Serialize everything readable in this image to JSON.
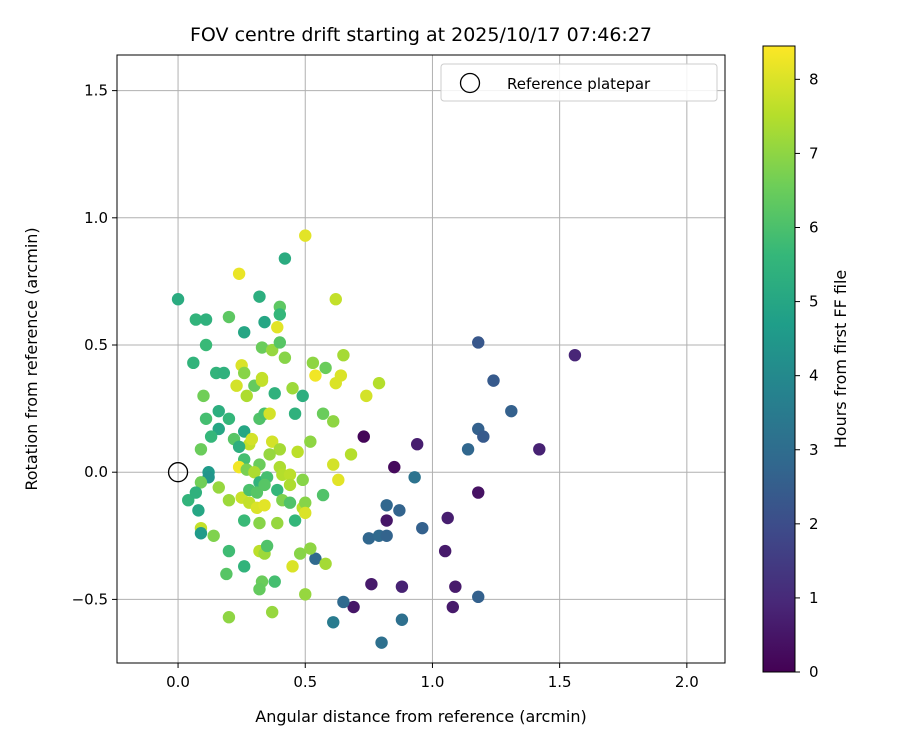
{
  "chart_data": {
    "type": "scatter",
    "title": "FOV centre drift starting at 2025/10/17 07:46:27",
    "xlabel": "Angular distance from reference (arcmin)",
    "ylabel": "Rotation from reference (arcmin)",
    "xlim": [
      -0.24,
      2.15
    ],
    "ylim": [
      -0.75,
      1.64
    ],
    "xticks": [
      0.0,
      0.5,
      1.0,
      1.5,
      2.0
    ],
    "xtick_labels": [
      "0.0",
      "0.5",
      "1.0",
      "1.5",
      "2.0"
    ],
    "yticks": [
      -0.5,
      0.0,
      0.5,
      1.0,
      1.5
    ],
    "ytick_labels": [
      "−0.5",
      "0.0",
      "0.5",
      "1.0",
      "1.5"
    ],
    "grid": true,
    "legend": {
      "label": "Reference platepar",
      "placement": "top-right"
    },
    "reference_point": {
      "x": 0.0,
      "y": 0.0
    },
    "colorbar": {
      "label": "Hours from first FF file",
      "range": [
        0,
        8.45
      ],
      "ticks": [
        0,
        1,
        2,
        3,
        4,
        5,
        6,
        7,
        8
      ],
      "tick_labels": [
        "0",
        "1",
        "2",
        "3",
        "4",
        "5",
        "6",
        "7",
        "8"
      ],
      "colormap": [
        "#440154",
        "#482878",
        "#3e4989",
        "#31688e",
        "#26828e",
        "#1f9e89",
        "#35b779",
        "#6ece58",
        "#b5de2b",
        "#fde725"
      ]
    },
    "points": [
      [
        1.56,
        0.46,
        0.9
      ],
      [
        1.42,
        0.09,
        0.8
      ],
      [
        1.18,
        0.51,
        2.3
      ],
      [
        1.24,
        0.36,
        2.4
      ],
      [
        1.31,
        0.24,
        2.6
      ],
      [
        1.18,
        0.17,
        2.6
      ],
      [
        1.2,
        0.14,
        2.4
      ],
      [
        1.14,
        0.09,
        2.8
      ],
      [
        0.94,
        0.11,
        0.7
      ],
      [
        0.73,
        0.14,
        0.1
      ],
      [
        0.85,
        0.02,
        0.2
      ],
      [
        0.93,
        -0.02,
        3.2
      ],
      [
        1.18,
        -0.08,
        0.4
      ],
      [
        0.82,
        -0.13,
        2.8
      ],
      [
        0.87,
        -0.15,
        2.7
      ],
      [
        0.82,
        -0.19,
        0.5
      ],
      [
        1.06,
        -0.18,
        0.7
      ],
      [
        0.96,
        -0.22,
        2.6
      ],
      [
        0.75,
        -0.26,
        2.8
      ],
      [
        0.79,
        -0.25,
        2.9
      ],
      [
        0.82,
        -0.25,
        2.7
      ],
      [
        1.05,
        -0.31,
        0.6
      ],
      [
        0.76,
        -0.44,
        0.6
      ],
      [
        0.88,
        -0.45,
        0.8
      ],
      [
        1.09,
        -0.45,
        0.6
      ],
      [
        1.18,
        -0.49,
        2.6
      ],
      [
        1.08,
        -0.53,
        0.6
      ],
      [
        0.69,
        -0.53,
        0.5
      ],
      [
        0.65,
        -0.51,
        2.9
      ],
      [
        0.61,
        -0.59,
        3.5
      ],
      [
        0.88,
        -0.58,
        3.1
      ],
      [
        0.8,
        -0.67,
        3.1
      ],
      [
        0.54,
        -0.34,
        2.9
      ],
      [
        0.0,
        0.68,
        5.2
      ],
      [
        0.42,
        0.84,
        5.2
      ],
      [
        0.5,
        0.93,
        8.1
      ],
      [
        0.24,
        0.78,
        8.2
      ],
      [
        0.62,
        0.68,
        7.7
      ],
      [
        0.32,
        0.69,
        5.3
      ],
      [
        0.2,
        0.61,
        6.3
      ],
      [
        0.4,
        0.65,
        6.3
      ],
      [
        0.07,
        0.6,
        5.5
      ],
      [
        0.11,
        0.6,
        5.4
      ],
      [
        0.26,
        0.55,
        5.0
      ],
      [
        0.34,
        0.59,
        5.0
      ],
      [
        0.4,
        0.62,
        5.6
      ],
      [
        0.39,
        0.57,
        8.1
      ],
      [
        0.11,
        0.5,
        5.7
      ],
      [
        0.33,
        0.49,
        6.5
      ],
      [
        0.37,
        0.48,
        7.1
      ],
      [
        0.4,
        0.51,
        6.2
      ],
      [
        0.42,
        0.45,
        6.9
      ],
      [
        0.06,
        0.43,
        5.5
      ],
      [
        0.15,
        0.39,
        5.5
      ],
      [
        0.18,
        0.39,
        5.4
      ],
      [
        0.25,
        0.42,
        8.0
      ],
      [
        0.26,
        0.39,
        6.9
      ],
      [
        0.53,
        0.43,
        7.0
      ],
      [
        0.58,
        0.41,
        6.5
      ],
      [
        0.65,
        0.46,
        7.3
      ],
      [
        0.54,
        0.38,
        8.3
      ],
      [
        0.64,
        0.38,
        8.0
      ],
      [
        0.62,
        0.35,
        8.0
      ],
      [
        0.79,
        0.35,
        7.5
      ],
      [
        0.74,
        0.3,
        7.9
      ],
      [
        0.1,
        0.3,
        6.6
      ],
      [
        0.23,
        0.34,
        7.9
      ],
      [
        0.3,
        0.34,
        6.4
      ],
      [
        0.27,
        0.3,
        7.4
      ],
      [
        0.33,
        0.37,
        7.7
      ],
      [
        0.33,
        0.36,
        7.7
      ],
      [
        0.38,
        0.31,
        5.4
      ],
      [
        0.45,
        0.33,
        7.2
      ],
      [
        0.49,
        0.3,
        5.3
      ],
      [
        0.16,
        0.24,
        5.3
      ],
      [
        0.2,
        0.21,
        5.6
      ],
      [
        0.11,
        0.21,
        5.9
      ],
      [
        0.32,
        0.21,
        6.1
      ],
      [
        0.34,
        0.23,
        6.0
      ],
      [
        0.36,
        0.23,
        7.9
      ],
      [
        0.46,
        0.23,
        5.4
      ],
      [
        0.57,
        0.23,
        6.5
      ],
      [
        0.61,
        0.2,
        7.0
      ],
      [
        0.16,
        0.17,
        5.0
      ],
      [
        0.26,
        0.16,
        5.0
      ],
      [
        0.13,
        0.14,
        5.6
      ],
      [
        0.22,
        0.13,
        6.2
      ],
      [
        0.28,
        0.11,
        7.7
      ],
      [
        0.29,
        0.13,
        7.9
      ],
      [
        0.37,
        0.12,
        7.9
      ],
      [
        0.4,
        0.09,
        7.3
      ],
      [
        0.52,
        0.12,
        7.0
      ],
      [
        0.24,
        0.1,
        5.3
      ],
      [
        0.09,
        0.09,
        6.5
      ],
      [
        0.36,
        0.07,
        7.1
      ],
      [
        0.47,
        0.08,
        7.6
      ],
      [
        0.68,
        0.07,
        7.5
      ],
      [
        0.61,
        0.03,
        7.9
      ],
      [
        0.26,
        0.05,
        5.9
      ],
      [
        0.32,
        0.03,
        6.5
      ],
      [
        0.24,
        0.02,
        8.3
      ],
      [
        0.27,
        0.01,
        6.7
      ],
      [
        0.3,
        0.0,
        7.4
      ],
      [
        0.4,
        0.02,
        7.4
      ],
      [
        0.41,
        -0.01,
        7.5
      ],
      [
        0.63,
        -0.03,
        8.1
      ],
      [
        0.12,
        0.0,
        4.6
      ],
      [
        0.12,
        -0.02,
        4.4
      ],
      [
        0.09,
        -0.04,
        6.6
      ],
      [
        0.32,
        -0.04,
        5.5
      ],
      [
        0.35,
        -0.02,
        5.9
      ],
      [
        0.44,
        -0.01,
        7.6
      ],
      [
        0.49,
        -0.03,
        6.9
      ],
      [
        0.04,
        -0.11,
        5.5
      ],
      [
        0.07,
        -0.08,
        5.4
      ],
      [
        0.16,
        -0.06,
        7.1
      ],
      [
        0.2,
        -0.11,
        7.2
      ],
      [
        0.25,
        -0.1,
        7.8
      ],
      [
        0.28,
        -0.07,
        6.0
      ],
      [
        0.31,
        -0.08,
        6.2
      ],
      [
        0.34,
        -0.05,
        6.2
      ],
      [
        0.39,
        -0.07,
        5.6
      ],
      [
        0.44,
        -0.05,
        7.4
      ],
      [
        0.41,
        -0.11,
        6.8
      ],
      [
        0.44,
        -0.12,
        6.1
      ],
      [
        0.49,
        -0.14,
        7.6
      ],
      [
        0.5,
        -0.12,
        6.9
      ],
      [
        0.57,
        -0.09,
        6.1
      ],
      [
        0.08,
        -0.15,
        5.0
      ],
      [
        0.28,
        -0.12,
        7.7
      ],
      [
        0.31,
        -0.14,
        8.0
      ],
      [
        0.34,
        -0.13,
        8.1
      ],
      [
        0.26,
        -0.19,
        5.7
      ],
      [
        0.32,
        -0.2,
        6.9
      ],
      [
        0.39,
        -0.2,
        7.1
      ],
      [
        0.46,
        -0.19,
        5.6
      ],
      [
        0.5,
        -0.16,
        8.0
      ],
      [
        0.09,
        -0.22,
        7.7
      ],
      [
        0.09,
        -0.24,
        4.6
      ],
      [
        0.14,
        -0.25,
        6.8
      ],
      [
        0.2,
        -0.31,
        5.8
      ],
      [
        0.32,
        -0.31,
        7.6
      ],
      [
        0.34,
        -0.32,
        7.2
      ],
      [
        0.35,
        -0.29,
        6.1
      ],
      [
        0.48,
        -0.32,
        6.9
      ],
      [
        0.52,
        -0.3,
        7.0
      ],
      [
        0.26,
        -0.37,
        5.5
      ],
      [
        0.45,
        -0.37,
        8.0
      ],
      [
        0.58,
        -0.36,
        7.3
      ],
      [
        0.19,
        -0.4,
        6.2
      ],
      [
        0.33,
        -0.43,
        6.5
      ],
      [
        0.38,
        -0.43,
        5.9
      ],
      [
        0.32,
        -0.46,
        6.4
      ],
      [
        0.5,
        -0.48,
        7.1
      ],
      [
        0.2,
        -0.57,
        7.0
      ],
      [
        0.37,
        -0.55,
        7.1
      ]
    ]
  }
}
